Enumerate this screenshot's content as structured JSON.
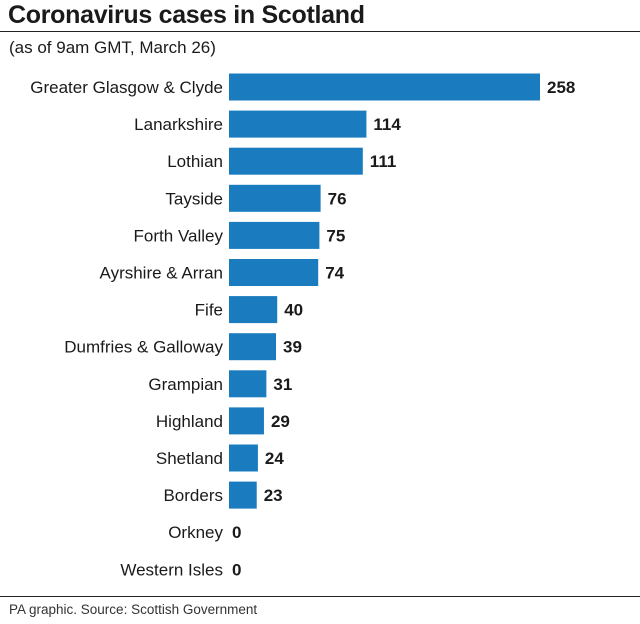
{
  "header": {
    "title": "Coronavirus cases in Scotland",
    "subtitle": "(as of 9am GMT, March 26)"
  },
  "footer": {
    "source": "PA graphic. Source: Scottish Government"
  },
  "colors": {
    "bar": "#1a7cbf",
    "text": "#1a1a1a"
  },
  "chart_data": {
    "type": "bar",
    "orientation": "horizontal",
    "title": "Coronavirus cases in Scotland",
    "subtitle": "(as of 9am GMT, March 26)",
    "categories": [
      "Greater Glasgow & Clyde",
      "Lanarkshire",
      "Lothian",
      "Tayside",
      "Forth Valley",
      "Ayrshire & Arran",
      "Fife",
      "Dumfries & Galloway",
      "Grampian",
      "Highland",
      "Shetland",
      "Borders",
      "Orkney",
      "Western Isles"
    ],
    "values": [
      258,
      114,
      111,
      76,
      75,
      74,
      40,
      39,
      31,
      29,
      24,
      23,
      0,
      0
    ],
    "data_labels": true,
    "grid": false,
    "legend": "none"
  }
}
